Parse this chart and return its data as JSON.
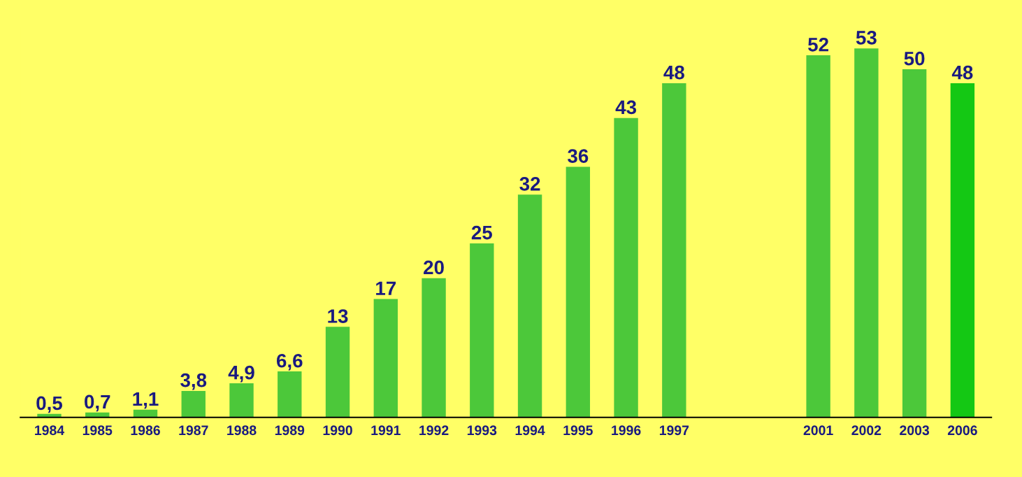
{
  "chart_data": {
    "type": "bar",
    "categories": [
      "1984",
      "1985",
      "1986",
      "1987",
      "1988",
      "1989",
      "1990",
      "1991",
      "1992",
      "1993",
      "1994",
      "1995",
      "1996",
      "1997",
      null,
      null,
      "2001",
      "2002",
      "2003",
      "2006"
    ],
    "values": [
      0.5,
      0.7,
      1.1,
      3.8,
      4.9,
      6.6,
      13,
      17,
      20,
      25,
      32,
      36,
      43,
      48,
      null,
      null,
      52,
      53,
      50,
      48
    ],
    "value_labels": [
      "0,5",
      "0,7",
      "1,1",
      "3,8",
      "4,9",
      "6,6",
      "13",
      "17",
      "20",
      "25",
      "32",
      "36",
      "43",
      "48",
      null,
      null,
      "52",
      "53",
      "50",
      "48"
    ],
    "colors": [
      "#4cc83a",
      "#4cc83a",
      "#4cc83a",
      "#4cc83a",
      "#4cc83a",
      "#4cc83a",
      "#4cc83a",
      "#4cc83a",
      "#4cc83a",
      "#4cc83a",
      "#4cc83a",
      "#4cc83a",
      "#4cc83a",
      "#4cc83a",
      null,
      null,
      "#4cc83a",
      "#4cc83a",
      "#4cc83a",
      "#14c814"
    ],
    "grid": false,
    "legend": false
  }
}
